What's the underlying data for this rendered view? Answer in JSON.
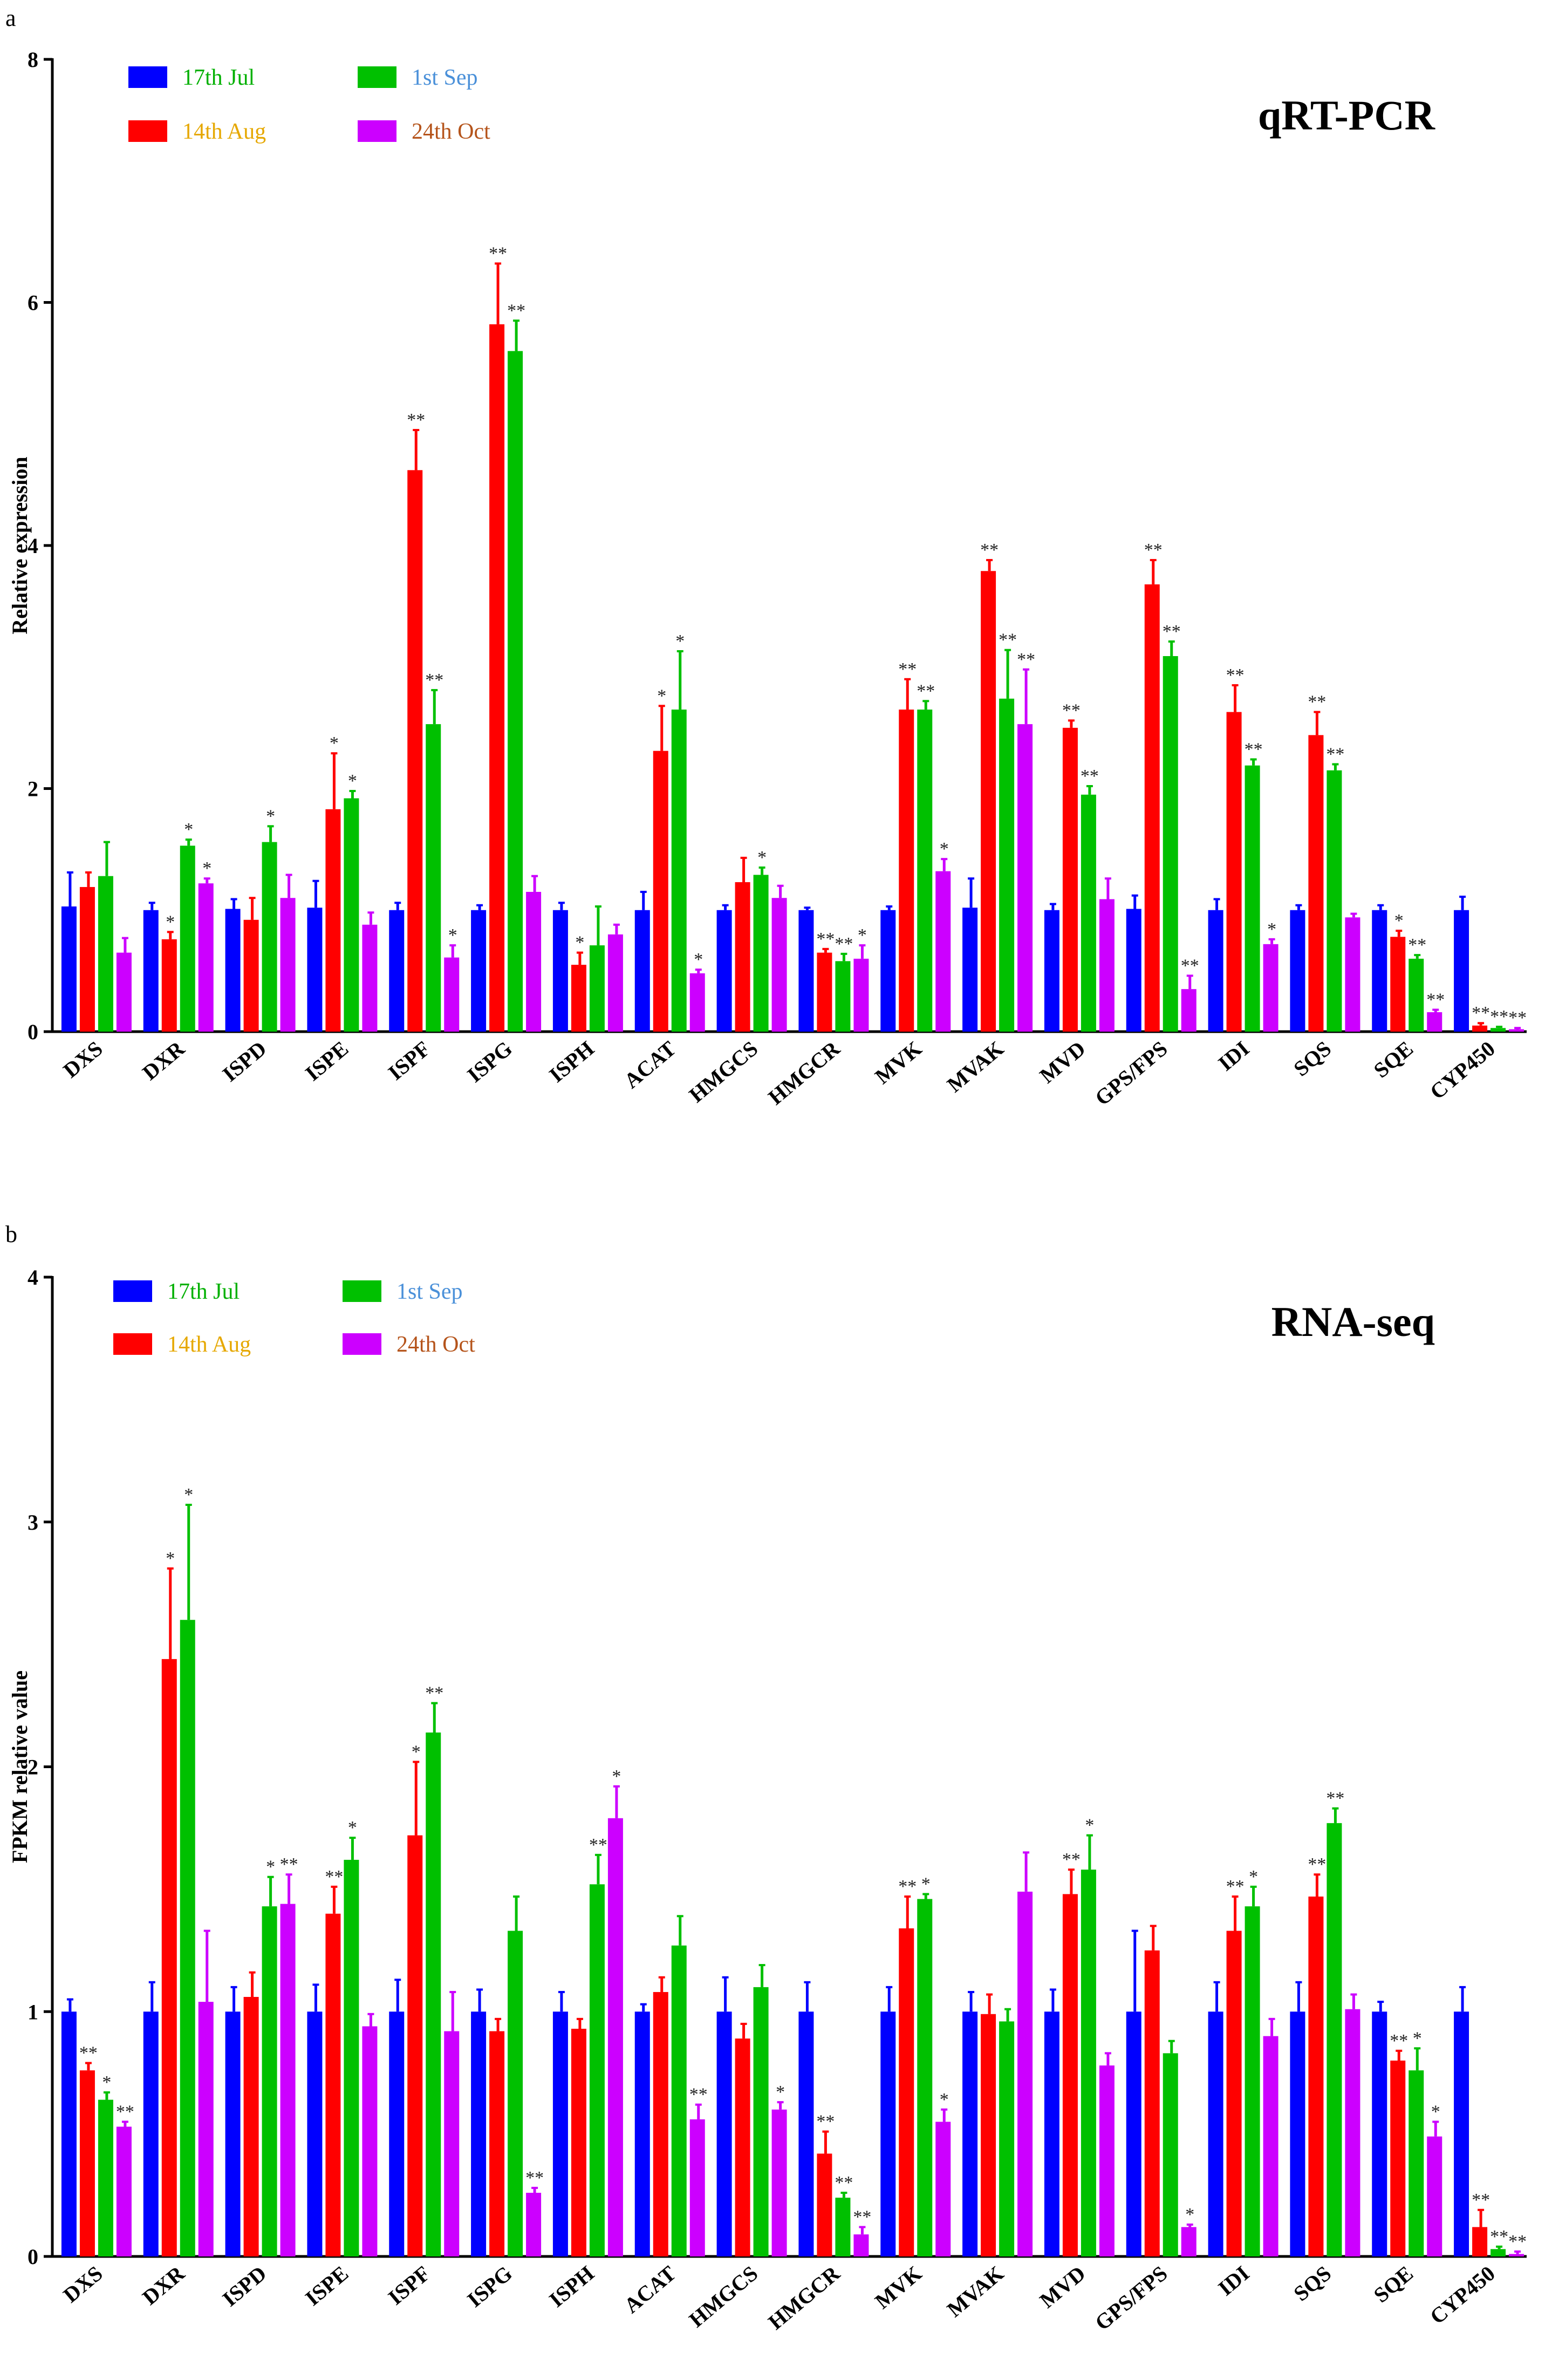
{
  "chart_data": [
    {
      "panel": "a",
      "type": "bar",
      "title": "qRT-PCR",
      "ylabel": "Relative expression",
      "xlabel": "",
      "ylim": [
        0,
        8
      ],
      "yticks": [
        "0",
        "2",
        "4",
        "6",
        "8"
      ],
      "legend_position": "top-left",
      "categories": [
        "DXS",
        "DXR",
        "ISPD",
        "ISPE",
        "ISPF",
        "ISPG",
        "ISPH",
        "ACAT",
        "HMGCS",
        "HMGCR",
        "MVK",
        "MVAK",
        "MVD",
        "GPS/FPS",
        "IDI",
        "SQS",
        "SQE",
        "CYP450"
      ],
      "series": [
        {
          "name": "17th Jul",
          "color": "#0000ff",
          "values": [
            1.03,
            1.0,
            1.01,
            1.02,
            1.0,
            1.0,
            1.0,
            1.0,
            1.0,
            1.0,
            1.0,
            1.02,
            1.0,
            1.01,
            1.0,
            1.0,
            1.0,
            1.0
          ],
          "errors": [
            0.28,
            0.06,
            0.08,
            0.22,
            0.06,
            0.04,
            0.06,
            0.15,
            0.04,
            0.02,
            0.03,
            0.24,
            0.05,
            0.11,
            0.09,
            0.04,
            0.04,
            0.11
          ],
          "sig": [
            "",
            "",
            "",
            "",
            "",
            "",
            "",
            "",
            "",
            "",
            "",
            "",
            "",
            "",
            "",
            "",
            "",
            ""
          ]
        },
        {
          "name": "14th Aug",
          "color": "#ff0000",
          "values": [
            1.19,
            0.76,
            0.92,
            1.83,
            4.62,
            5.82,
            0.55,
            2.31,
            1.23,
            0.65,
            2.65,
            3.79,
            2.5,
            3.68,
            2.63,
            2.44,
            0.78,
            0.05
          ],
          "errors": [
            0.12,
            0.06,
            0.18,
            0.46,
            0.33,
            0.5,
            0.1,
            0.37,
            0.2,
            0.03,
            0.25,
            0.09,
            0.06,
            0.2,
            0.22,
            0.19,
            0.05,
            0.02
          ],
          "sig": [
            "",
            "*",
            "",
            "*",
            "**",
            "**",
            "*",
            "*",
            "",
            "**",
            "**",
            "**",
            "**",
            "**",
            "**",
            "**",
            "*",
            "**"
          ]
        },
        {
          "name": "1st Sep",
          "color": "#00c000",
          "values": [
            1.28,
            1.53,
            1.56,
            1.92,
            2.53,
            5.6,
            0.71,
            2.65,
            1.29,
            0.58,
            2.65,
            2.74,
            1.95,
            3.09,
            2.19,
            2.15,
            0.6,
            0.03
          ],
          "errors": [
            0.28,
            0.05,
            0.13,
            0.06,
            0.28,
            0.25,
            0.32,
            0.48,
            0.06,
            0.06,
            0.07,
            0.4,
            0.07,
            0.12,
            0.05,
            0.05,
            0.03,
            0.01
          ],
          "sig": [
            "",
            "*",
            "*",
            "*",
            "**",
            "**",
            "",
            "*",
            "*",
            "**",
            "**",
            "**",
            "**",
            "**",
            "**",
            "**",
            "**",
            "**"
          ]
        },
        {
          "name": "24th Oct",
          "color": "#cc00ff",
          "values": [
            0.65,
            1.22,
            1.1,
            0.88,
            0.61,
            1.15,
            0.8,
            0.48,
            1.1,
            0.6,
            1.32,
            2.53,
            1.09,
            0.35,
            0.72,
            0.94,
            0.16,
            0.02
          ],
          "errors": [
            0.12,
            0.04,
            0.19,
            0.1,
            0.1,
            0.13,
            0.08,
            0.03,
            0.1,
            0.11,
            0.1,
            0.45,
            0.17,
            0.11,
            0.04,
            0.03,
            0.02,
            0.01
          ],
          "sig": [
            "",
            "*",
            "",
            "",
            "*",
            "",
            "",
            "*",
            "",
            "*",
            "*",
            "**",
            "",
            "**",
            "*",
            "",
            "**",
            "**"
          ]
        }
      ]
    },
    {
      "panel": "b",
      "type": "bar",
      "title": "RNA-seq",
      "ylabel": "FPKM relative value",
      "xlabel": "",
      "ylim": [
        0,
        4
      ],
      "yticks": [
        "0",
        "1",
        "2",
        "3",
        "4"
      ],
      "legend_position": "top-left",
      "categories": [
        "DXS",
        "DXR",
        "ISPD",
        "ISPE",
        "ISPF",
        "ISPG",
        "ISPH",
        "ACAT",
        "HMGCS",
        "HMGCR",
        "MVK",
        "MVAK",
        "MVD",
        "GPS/FPS",
        "IDI",
        "SQS",
        "SQE",
        "CYP450"
      ],
      "series": [
        {
          "name": "17th Jul",
          "color": "#0000ff",
          "values": [
            1.0,
            1.0,
            1.0,
            1.0,
            1.0,
            1.0,
            1.0,
            1.0,
            1.0,
            1.0,
            1.0,
            1.0,
            1.0,
            1.0,
            1.0,
            1.0,
            1.0,
            1.0
          ],
          "errors": [
            0.05,
            0.12,
            0.1,
            0.11,
            0.13,
            0.09,
            0.08,
            0.03,
            0.14,
            0.12,
            0.1,
            0.08,
            0.09,
            0.33,
            0.12,
            0.12,
            0.04,
            0.1
          ],
          "sig": [
            "",
            "",
            "",
            "",
            "",
            "",
            "",
            "",
            "",
            "",
            "",
            "",
            "",
            "",
            "",
            "",
            "",
            ""
          ]
        },
        {
          "name": "14th Aug",
          "color": "#ff0000",
          "values": [
            0.76,
            2.44,
            1.06,
            1.4,
            1.72,
            0.92,
            0.93,
            1.08,
            0.89,
            0.42,
            1.34,
            0.99,
            1.48,
            1.25,
            1.33,
            1.47,
            0.8,
            0.12
          ],
          "errors": [
            0.03,
            0.37,
            0.1,
            0.11,
            0.3,
            0.05,
            0.04,
            0.06,
            0.06,
            0.09,
            0.13,
            0.08,
            0.1,
            0.1,
            0.14,
            0.09,
            0.04,
            0.07
          ],
          "sig": [
            "**",
            "*",
            "",
            "**",
            "*",
            "",
            "",
            "",
            "",
            "**",
            "**",
            "",
            "**",
            "",
            "**",
            "**",
            "**",
            "**"
          ]
        },
        {
          "name": "1st Sep",
          "color": "#00c000",
          "values": [
            0.64,
            2.6,
            1.43,
            1.62,
            2.14,
            1.33,
            1.52,
            1.27,
            1.1,
            0.24,
            1.46,
            0.96,
            1.58,
            0.83,
            1.43,
            1.77,
            0.76,
            0.03
          ],
          "errors": [
            0.03,
            0.47,
            0.12,
            0.09,
            0.12,
            0.14,
            0.12,
            0.12,
            0.09,
            0.02,
            0.02,
            0.05,
            0.14,
            0.05,
            0.08,
            0.06,
            0.09,
            0.01
          ],
          "sig": [
            "*",
            "*",
            "*",
            "*",
            "**",
            "",
            "**",
            "",
            "",
            "**",
            "*",
            "",
            "*",
            "",
            "*",
            "**",
            "*",
            "**"
          ]
        },
        {
          "name": "24th Oct",
          "color": "#cc00ff",
          "values": [
            0.53,
            1.04,
            1.44,
            0.94,
            0.92,
            0.26,
            1.79,
            0.56,
            0.6,
            0.09,
            0.55,
            1.49,
            0.78,
            0.12,
            0.9,
            1.01,
            0.49,
            0.01
          ],
          "errors": [
            0.02,
            0.29,
            0.12,
            0.05,
            0.16,
            0.02,
            0.13,
            0.06,
            0.03,
            0.03,
            0.05,
            0.16,
            0.05,
            0.01,
            0.07,
            0.06,
            0.06,
            0.01
          ],
          "sig": [
            "**",
            "",
            "**",
            "",
            "",
            "**",
            "*",
            "**",
            "*",
            "**",
            "*",
            "",
            "",
            "*",
            "",
            "",
            "*",
            "**"
          ]
        }
      ]
    }
  ],
  "legend_label_colors": {
    "17th Jul": "#00b000",
    "14th Aug": "#e6a800",
    "1st Sep": "#4a90d9",
    "24th Oct": "#b5541b"
  }
}
